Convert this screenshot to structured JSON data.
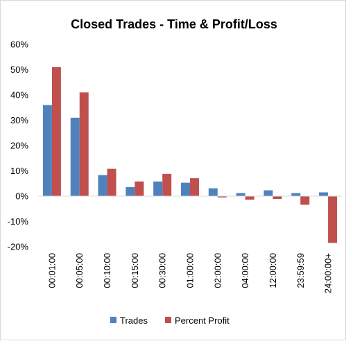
{
  "chart_data": {
    "type": "bar",
    "title": "Closed Trades - Time & Profit/Loss",
    "categories": [
      "00:01:00",
      "00:05:00",
      "00:10:00",
      "00:15:00",
      "00:30:00",
      "01:00:00",
      "02:00:00",
      "04:00:00",
      "12:00:00",
      "23:59:59",
      "24:00:00+"
    ],
    "series": [
      {
        "name": "Trades",
        "color": "#4f81bd",
        "values": [
          36,
          31,
          8.3,
          3.6,
          5.8,
          5.3,
          3.1,
          1.2,
          2.3,
          1.2,
          1.5
        ]
      },
      {
        "name": "Percent Profit",
        "color": "#c0504d",
        "values": [
          51,
          41,
          10.8,
          5.8,
          8.8,
          7.1,
          -0.5,
          -1.4,
          -1.1,
          -3.4,
          -18.5
        ]
      }
    ],
    "ylim": [
      -20,
      60
    ],
    "yticks": [
      "-20%",
      "-10%",
      "0%",
      "10%",
      "20%",
      "30%",
      "40%",
      "50%",
      "60%"
    ],
    "ytick_values": [
      -20,
      -10,
      0,
      10,
      20,
      30,
      40,
      50,
      60
    ],
    "grid": false,
    "legend_position": "bottom"
  }
}
